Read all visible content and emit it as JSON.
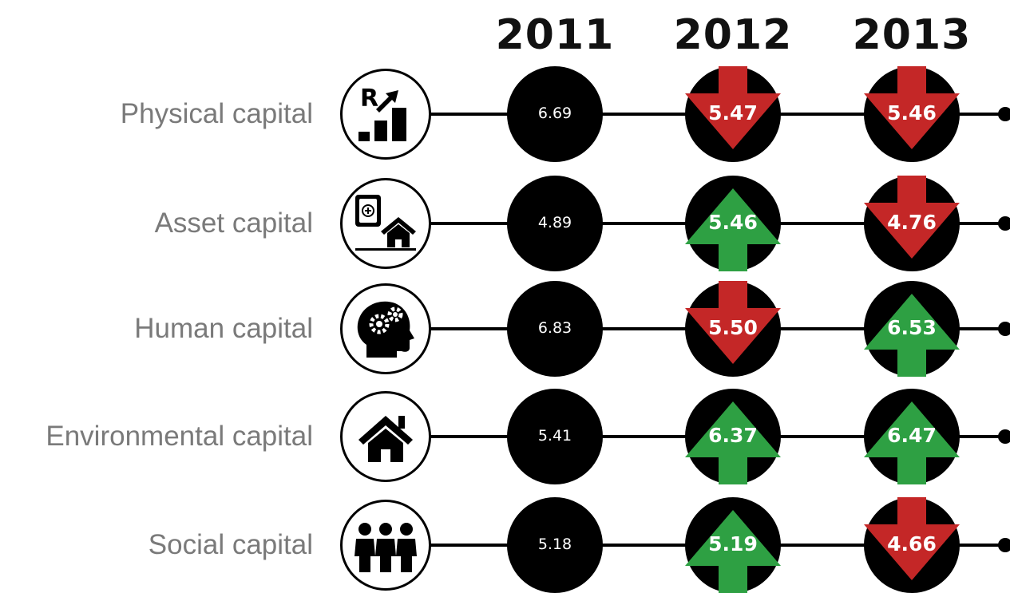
{
  "chart_data": {
    "type": "table",
    "columns": [
      "2011",
      "2012",
      "2013"
    ],
    "colors": {
      "increase": "#2ea043",
      "decrease": "#c42727",
      "neutral": "#000000"
    },
    "rows": [
      {
        "label": "Physical capital",
        "icon": "rand-growth-chart-icon",
        "values": [
          "6.69",
          "5.47",
          "5.46"
        ],
        "trend": [
          "neutral",
          "down",
          "down"
        ]
      },
      {
        "label": "Asset capital",
        "icon": "safe-and-house-icon",
        "values": [
          "4.89",
          "5.46",
          "4.76"
        ],
        "trend": [
          "neutral",
          "up",
          "down"
        ]
      },
      {
        "label": "Human capital",
        "icon": "head-with-gears-icon",
        "values": [
          "6.83",
          "5.50",
          "6.53"
        ],
        "trend": [
          "neutral",
          "down",
          "up"
        ]
      },
      {
        "label": "Environmental capital",
        "icon": "house-icon",
        "values": [
          "5.41",
          "6.37",
          "6.47"
        ],
        "trend": [
          "neutral",
          "up",
          "up"
        ]
      },
      {
        "label": "Social capital",
        "icon": "group-of-people-icon",
        "values": [
          "5.18",
          "5.19",
          "4.66"
        ],
        "trend": [
          "neutral",
          "up",
          "down"
        ]
      }
    ]
  }
}
